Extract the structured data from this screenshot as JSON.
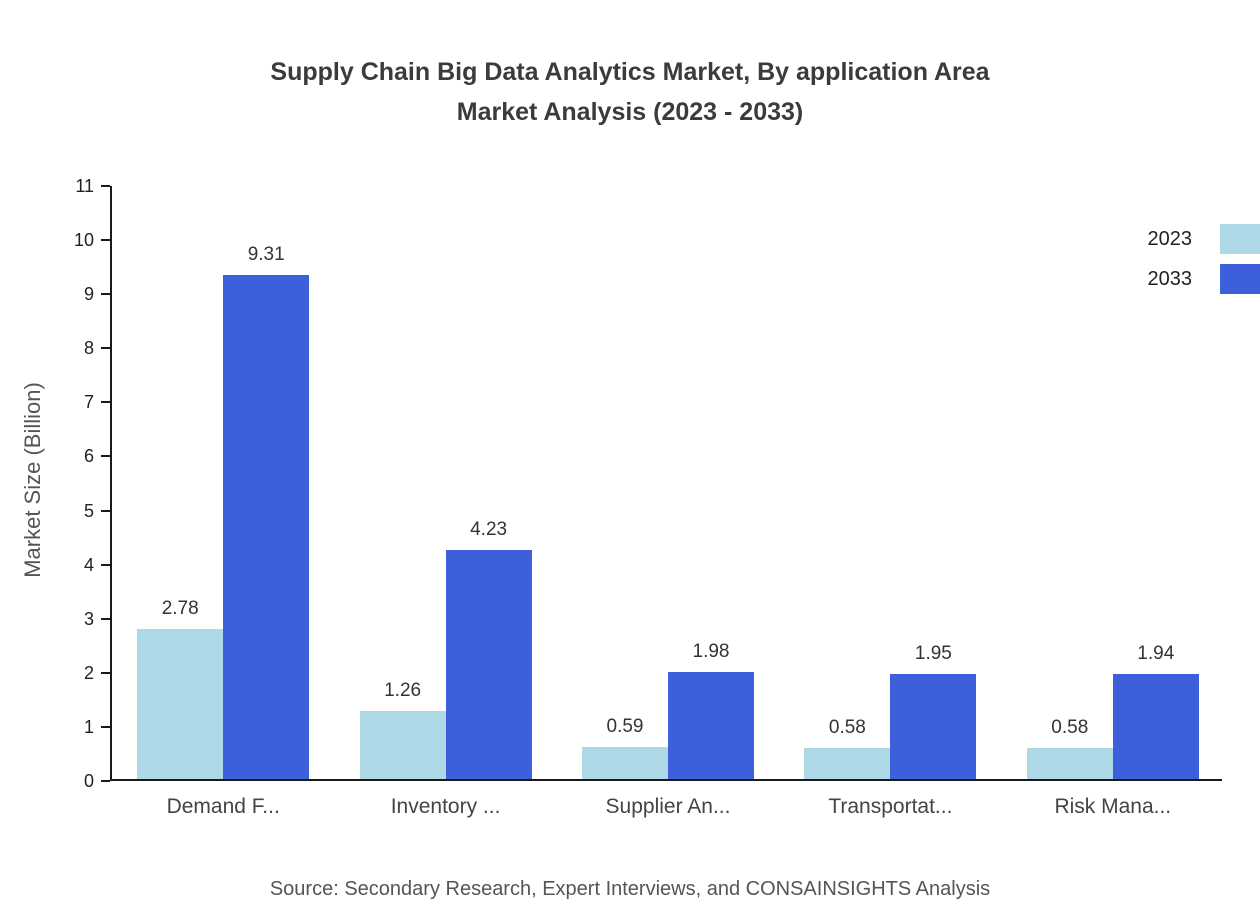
{
  "title": {
    "line1": "Supply Chain Big Data Analytics Market, By application Area",
    "line2": "Market Analysis (2023 - 2033)"
  },
  "source": "Source: Secondary Research, Expert Interviews, and CONSAINSIGHTS Analysis",
  "chart_data": {
    "type": "bar",
    "categories": [
      "Demand F...",
      "Inventory ...",
      "Supplier An...",
      "Transportat...",
      "Risk Mana..."
    ],
    "series": [
      {
        "name": "2023",
        "color": "#ADD8E6",
        "values": [
          2.78,
          1.26,
          0.59,
          0.58,
          0.58
        ]
      },
      {
        "name": "2033",
        "color": "#3D5FD9",
        "values": [
          9.31,
          4.23,
          1.98,
          1.95,
          1.94
        ]
      }
    ],
    "title": "Supply Chain Big Data Analytics Market, By application Area Market Analysis (2023 - 2033)",
    "xlabel": "",
    "ylabel": "Market Size (Billion)",
    "ylim": [
      0,
      11
    ],
    "ytick_step": 1,
    "grid": false,
    "legend_position": "top-right",
    "value_labels": true
  }
}
